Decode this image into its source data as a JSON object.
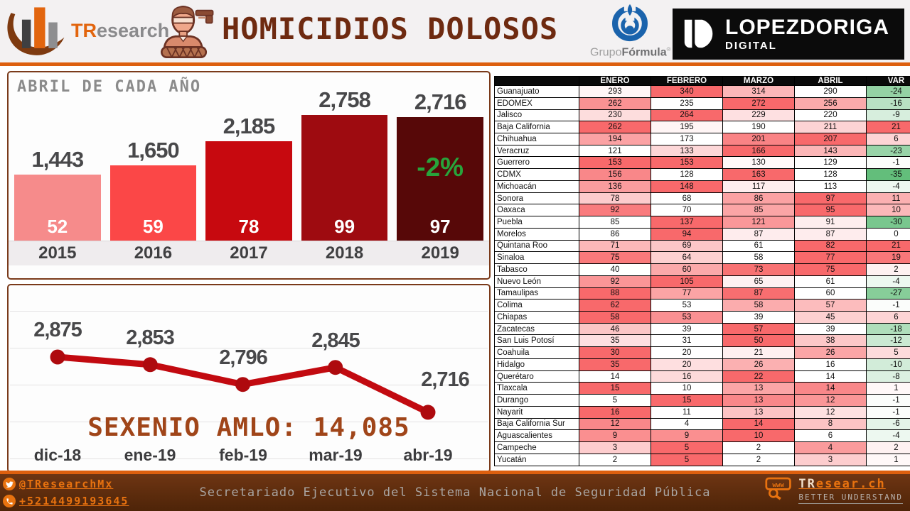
{
  "header": {
    "brand": {
      "prefix": "TR",
      "suffix": "esearch"
    },
    "title": "HOMICIDIOS DOLOSOS",
    "grupo_formula": {
      "grupo": "Grupo",
      "formula": "Fórmula",
      "reg": "®"
    },
    "lopezdoriga": {
      "name": "LOPEZDORIGA",
      "sub": "DIGITAL"
    }
  },
  "colors": {
    "accent_orange": "#DD5F0E",
    "title_brown": "#6E2A10",
    "line_red": "#C20A10",
    "heat_red": "#F8696B",
    "heat_green": "#63BE7B",
    "sexenio_brown": "#A04519",
    "annotation_green": "#28A43B",
    "footer_brown": "#5E2B0D"
  },
  "chart_data": [
    {
      "type": "bar",
      "title": "ABRIL DE CADA AÑO",
      "categories": [
        "2015",
        "2016",
        "2017",
        "2018",
        "2019"
      ],
      "values": [
        1443,
        1650,
        2185,
        2758,
        2716
      ],
      "value_labels": [
        "1,443",
        "1,650",
        "2,185",
        "2,758",
        "2,716"
      ],
      "inner_labels": [
        "52",
        "59",
        "78",
        "99",
        "97"
      ],
      "annotation": "-2%",
      "annotation_on": "2019",
      "bar_colors": [
        "#F68B8B",
        "#FB4747",
        "#C7090F",
        "#9E0B10",
        "#570808"
      ],
      "ylim": [
        0,
        2758
      ],
      "grid": false
    },
    {
      "type": "line",
      "categories": [
        "dic-18",
        "ene-19",
        "feb-19",
        "mar-19",
        "abr-19"
      ],
      "values": [
        2875,
        2853,
        2796,
        2845,
        2716
      ],
      "value_labels": [
        "2,875",
        "2,853",
        "2,796",
        "2,845",
        "2,716"
      ],
      "annotation": "SEXENIO AMLO: 14,085",
      "line_color": "#C20A10",
      "grid": true,
      "ylim": [
        2650,
        2950
      ],
      "legend": "none"
    },
    {
      "type": "table",
      "columns": [
        "",
        "ENERO",
        "FEBRERO",
        "MARZO",
        "ABRIL",
        "VAR"
      ],
      "rows": [
        [
          "Guanajuato",
          293,
          340,
          314,
          290,
          -24
        ],
        [
          "EDOMEX",
          262,
          235,
          272,
          256,
          -16
        ],
        [
          "Jalisco",
          230,
          264,
          229,
          220,
          -9
        ],
        [
          "Baja California",
          262,
          195,
          190,
          211,
          21
        ],
        [
          "Chihuahua",
          194,
          173,
          201,
          207,
          6
        ],
        [
          "Veracruz",
          121,
          133,
          166,
          143,
          -23
        ],
        [
          "Guerrero",
          153,
          153,
          130,
          129,
          -1
        ],
        [
          "CDMX",
          156,
          128,
          163,
          128,
          -35
        ],
        [
          "Michoacán",
          136,
          148,
          117,
          113,
          -4
        ],
        [
          "Sonora",
          78,
          68,
          86,
          97,
          11
        ],
        [
          "Oaxaca",
          92,
          70,
          85,
          95,
          10
        ],
        [
          "Puebla",
          85,
          137,
          121,
          91,
          -30
        ],
        [
          "Morelos",
          86,
          94,
          87,
          87,
          0
        ],
        [
          "Quintana Roo",
          71,
          69,
          61,
          82,
          21
        ],
        [
          "Sinaloa",
          75,
          64,
          58,
          77,
          19
        ],
        [
          "Tabasco",
          40,
          60,
          73,
          75,
          2
        ],
        [
          "Nuevo León",
          92,
          105,
          65,
          61,
          -4
        ],
        [
          "Tamaulipas",
          88,
          77,
          87,
          60,
          -27
        ],
        [
          "Colima",
          62,
          53,
          58,
          57,
          -1
        ],
        [
          "Chiapas",
          58,
          53,
          39,
          45,
          6
        ],
        [
          "Zacatecas",
          46,
          39,
          57,
          39,
          -18
        ],
        [
          "San Luis Potosí",
          35,
          31,
          50,
          38,
          -12
        ],
        [
          "Coahuila",
          30,
          20,
          21,
          26,
          5
        ],
        [
          "Hidalgo",
          35,
          20,
          26,
          16,
          -10
        ],
        [
          "Querétaro",
          14,
          16,
          22,
          14,
          -8
        ],
        [
          "Tlaxcala",
          15,
          10,
          13,
          14,
          1
        ],
        [
          "Durango",
          5,
          15,
          13,
          12,
          -1
        ],
        [
          "Nayarit",
          16,
          11,
          13,
          12,
          -1
        ],
        [
          "Baja California Sur",
          12,
          4,
          14,
          8,
          -6
        ],
        [
          "Aguascalientes",
          9,
          9,
          10,
          6,
          -4
        ],
        [
          "Campeche",
          3,
          5,
          2,
          4,
          2
        ],
        [
          "Yucatán",
          2,
          5,
          2,
          3,
          1
        ]
      ]
    }
  ],
  "footer": {
    "twitter": "@TResearchMx",
    "phone": "+5214499193645",
    "center": "Secretariado Ejecutivo del Sistema Nacional de Seguridad Pública",
    "site_prefix": "TR",
    "site_suffix": "esear.ch",
    "tagline": "BETTER UNDERSTAND",
    "www": "www"
  }
}
